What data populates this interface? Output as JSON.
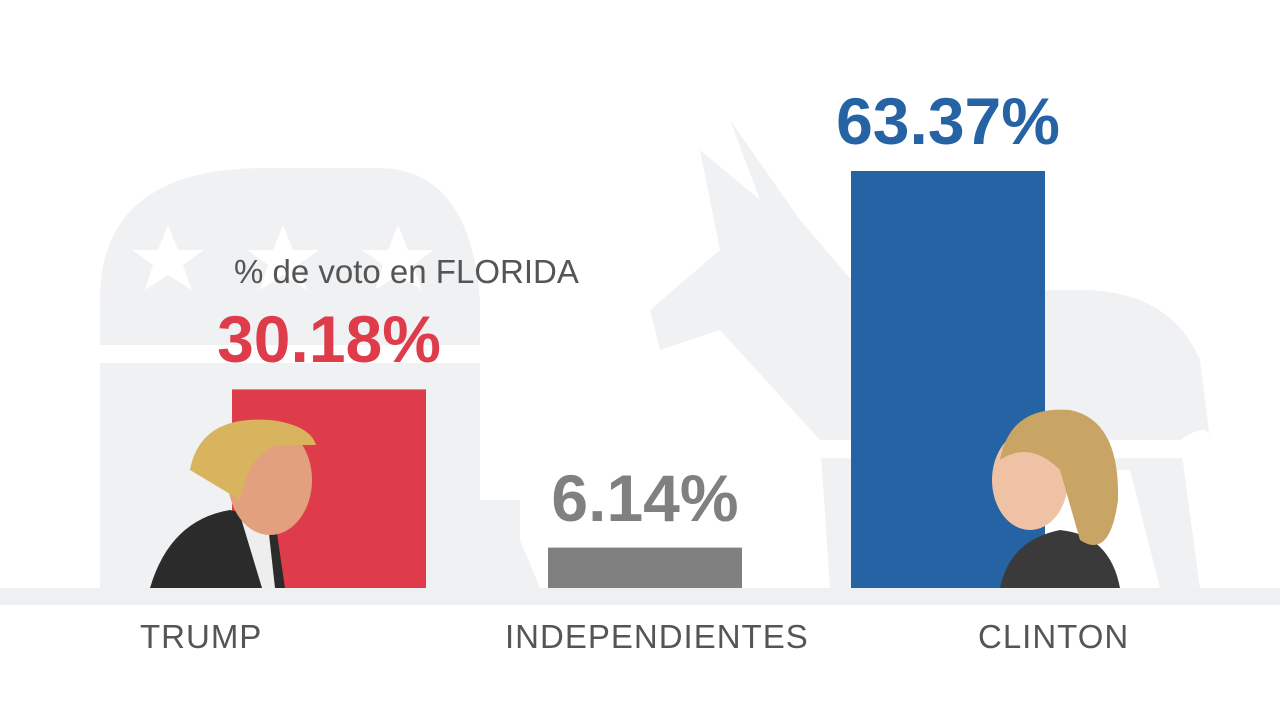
{
  "chart_data": {
    "type": "bar",
    "title": "% de voto en FLORIDA",
    "categories": [
      "TRUMP",
      "INDEPENDIENTES",
      "CLINTON"
    ],
    "values": [
      30.18,
      6.14,
      63.37
    ],
    "value_labels": [
      "30.18%",
      "6.14%",
      "63.37%"
    ],
    "colors": [
      "#de3c4b",
      "#808080",
      "#2563a4"
    ],
    "ylim": [
      0,
      63.37
    ],
    "grid": false,
    "legend": "none"
  }
}
